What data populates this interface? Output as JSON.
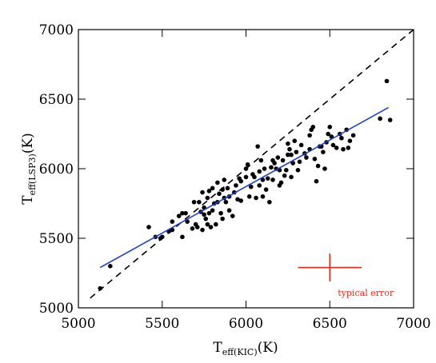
{
  "chart_data": {
    "type": "scatter",
    "x_label": {
      "base": "T",
      "subscript": "eff(KIC)",
      "suffix": "(K)"
    },
    "y_label": {
      "base": "T",
      "subscript": "eff(LSP3)",
      "suffix": "(K)"
    },
    "xlim": [
      5000,
      7000
    ],
    "xticks": [
      5000,
      5500,
      6000,
      6500,
      7000
    ],
    "ylim": [
      5000,
      7000
    ],
    "yticks": [
      5000,
      5500,
      6000,
      6500,
      7000
    ],
    "point_color": "#000000",
    "x": [
      5130,
      5190,
      5420,
      5460,
      5490,
      5500,
      5540,
      5560,
      5560,
      5600,
      5620,
      5620,
      5640,
      5650,
      5680,
      5690,
      5700,
      5710,
      5720,
      5730,
      5740,
      5740,
      5750,
      5750,
      5760,
      5770,
      5770,
      5780,
      5780,
      5790,
      5800,
      5800,
      5810,
      5820,
      5830,
      5830,
      5840,
      5850,
      5860,
      5860,
      5870,
      5870,
      5880,
      5890,
      5900,
      5900,
      5920,
      5930,
      5940,
      5950,
      5960,
      5970,
      5970,
      6000,
      6000,
      6010,
      6020,
      6030,
      6040,
      6050,
      6060,
      6070,
      6080,
      6080,
      6090,
      6100,
      6100,
      6110,
      6120,
      6130,
      6140,
      6150,
      6160,
      6160,
      6170,
      6180,
      6190,
      6200,
      6200,
      6210,
      6220,
      6230,
      6240,
      6250,
      6250,
      6260,
      6270,
      6270,
      6280,
      6290,
      6300,
      6310,
      6320,
      6330,
      6350,
      6360,
      6380,
      6380,
      6390,
      6400,
      6410,
      6420,
      6430,
      6440,
      6450,
      6460,
      6470,
      6480,
      6490,
      6500,
      6510,
      6520,
      6540,
      6560,
      6570,
      6580,
      6600,
      6610,
      6620,
      6640,
      6800,
      6840,
      6860
    ],
    "y": [
      5140,
      5300,
      5580,
      5510,
      5500,
      5510,
      5550,
      5560,
      5620,
      5660,
      5680,
      5510,
      5680,
      5620,
      5570,
      5760,
      5600,
      5580,
      5760,
      5690,
      5830,
      5560,
      5670,
      5720,
      5640,
      5790,
      5600,
      5680,
      5840,
      5580,
      5700,
      5860,
      5750,
      5600,
      5760,
      5900,
      5820,
      5680,
      5850,
      5640,
      5790,
      5920,
      5760,
      5860,
      5700,
      5800,
      5660,
      5830,
      5880,
      5780,
      5930,
      5910,
      5770,
      5940,
      6000,
      6030,
      5800,
      5870,
      5960,
      5940,
      5790,
      6160,
      5980,
      5880,
      6060,
      5800,
      5920,
      6000,
      5850,
      5930,
      5760,
      6010,
      6060,
      5920,
      6040,
      6000,
      6080,
      5880,
      5990,
      5900,
      6060,
      5950,
      5990,
      6100,
      6180,
      6140,
      6100,
      5940,
      6040,
      6200,
      6120,
      5990,
      6050,
      6170,
      6110,
      6080,
      6140,
      6240,
      6280,
      6300,
      6070,
      5910,
      6020,
      6160,
      6160,
      6120,
      6000,
      6190,
      6250,
      6300,
      6230,
      6170,
      6150,
      6250,
      6220,
      6140,
      6280,
      6150,
      6200,
      6240,
      6360,
      6630,
      6350
    ],
    "one_to_one": {
      "x": [
        5070,
        7000
      ],
      "y": [
        5070,
        7000
      ],
      "color": "#000000"
    },
    "fit_line": {
      "x": [
        5130,
        6850
      ],
      "y": [
        5290,
        6440
      ],
      "color": "#1f3fd6"
    },
    "typical_error": {
      "x": 6500,
      "y": 5290,
      "xerr": 190,
      "yerr": 100,
      "label": "typical error",
      "color": "#e8291c"
    }
  }
}
